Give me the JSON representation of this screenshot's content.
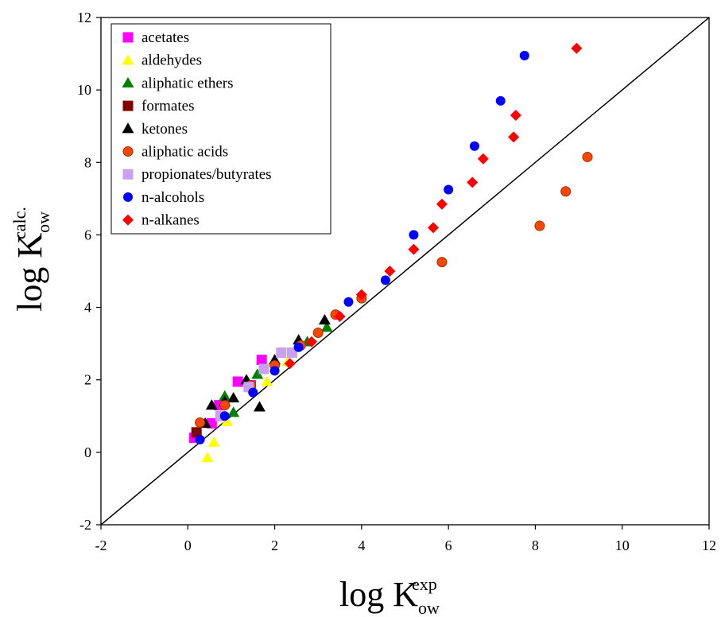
{
  "chart_data": {
    "type": "scatter",
    "title": "",
    "xlabel": {
      "base": "log K",
      "sub": "ow",
      "sup": "exp"
    },
    "ylabel": {
      "base": "log K",
      "sub": "ow",
      "sup": "calc."
    },
    "xlim": [
      -2,
      12
    ],
    "ylim": [
      -2,
      12
    ],
    "xticks": [
      -2,
      0,
      2,
      4,
      6,
      8,
      10,
      12
    ],
    "yticks": [
      -2,
      0,
      2,
      4,
      6,
      8,
      10,
      12
    ],
    "xtick_labels": [
      "-2",
      "0",
      "2",
      "4",
      "6",
      "8",
      "10",
      "12"
    ],
    "ytick_labels": [
      "-2",
      "0",
      "2",
      "4",
      "6",
      "8",
      "10",
      "12"
    ],
    "grid": false,
    "legend_position": "top-left",
    "reference_line": {
      "from": [
        -2,
        -2
      ],
      "to": [
        12,
        12
      ]
    },
    "series": [
      {
        "name": "acetates",
        "marker": "square",
        "color": "#ff00ff",
        "points": [
          [
            0.15,
            0.4
          ],
          [
            0.55,
            0.8
          ],
          [
            0.72,
            1.3
          ],
          [
            1.15,
            1.95
          ],
          [
            1.45,
            1.85
          ],
          [
            1.7,
            2.55
          ]
        ]
      },
      {
        "name": "aldehydes",
        "marker": "triangle",
        "color": "#ffff00",
        "points": [
          [
            0.45,
            -0.15
          ],
          [
            0.6,
            0.28
          ],
          [
            0.9,
            0.85
          ],
          [
            1.82,
            1.95
          ],
          [
            2.3,
            2.5
          ]
        ]
      },
      {
        "name": "aliphatic ethers",
        "marker": "triangle",
        "color": "#008000",
        "points": [
          [
            0.85,
            1.55
          ],
          [
            1.05,
            1.1
          ],
          [
            1.6,
            2.15
          ],
          [
            2.75,
            3.05
          ],
          [
            3.2,
            3.45
          ]
        ]
      },
      {
        "name": "formates",
        "marker": "square",
        "color": "#800000",
        "points": [
          [
            0.2,
            0.55
          ]
        ]
      },
      {
        "name": "ketones",
        "marker": "triangle",
        "color": "#000000",
        "points": [
          [
            0.4,
            0.8
          ],
          [
            0.55,
            1.3
          ],
          [
            0.85,
            1.4
          ],
          [
            1.05,
            1.5
          ],
          [
            1.35,
            2.0
          ],
          [
            1.65,
            1.25
          ],
          [
            2.0,
            2.55
          ],
          [
            2.55,
            3.1
          ],
          [
            3.15,
            3.65
          ]
        ]
      },
      {
        "name": "aliphatic acids",
        "marker": "circle",
        "color": "#ff4500",
        "points": [
          [
            0.28,
            0.82
          ],
          [
            0.85,
            1.3
          ],
          [
            1.45,
            1.85
          ],
          [
            2.0,
            2.4
          ],
          [
            2.6,
            2.95
          ],
          [
            3.0,
            3.3
          ],
          [
            3.4,
            3.8
          ],
          [
            4.0,
            4.25
          ],
          [
            5.85,
            5.25
          ],
          [
            8.1,
            6.25
          ],
          [
            8.7,
            7.2
          ],
          [
            9.2,
            8.15
          ]
        ]
      },
      {
        "name": "propionates/butyrates",
        "marker": "square",
        "color": "#c8a2f0",
        "points": [
          [
            0.75,
            1.0
          ],
          [
            1.4,
            1.8
          ],
          [
            1.75,
            2.3
          ],
          [
            2.15,
            2.75
          ],
          [
            2.4,
            2.75
          ]
        ]
      },
      {
        "name": "n-alcohols",
        "marker": "circle",
        "color": "#0000ff",
        "points": [
          [
            0.28,
            0.35
          ],
          [
            0.85,
            1.0
          ],
          [
            1.5,
            1.65
          ],
          [
            2.0,
            2.25
          ],
          [
            2.55,
            2.9
          ],
          [
            3.7,
            4.15
          ],
          [
            4.55,
            4.75
          ],
          [
            5.2,
            6.0
          ],
          [
            6.0,
            7.25
          ],
          [
            6.6,
            8.45
          ],
          [
            7.2,
            9.7
          ],
          [
            7.75,
            10.95
          ]
        ]
      },
      {
        "name": "n-alkanes",
        "marker": "diamond",
        "color": "#ff0000",
        "points": [
          [
            2.35,
            2.45
          ],
          [
            2.85,
            3.05
          ],
          [
            3.5,
            3.75
          ],
          [
            4.0,
            4.35
          ],
          [
            4.65,
            5.0
          ],
          [
            5.2,
            5.6
          ],
          [
            5.65,
            6.2
          ],
          [
            5.85,
            6.85
          ],
          [
            6.55,
            7.45
          ],
          [
            6.8,
            8.1
          ],
          [
            7.5,
            8.7
          ],
          [
            7.55,
            9.3
          ],
          [
            8.95,
            11.15
          ]
        ]
      }
    ]
  }
}
